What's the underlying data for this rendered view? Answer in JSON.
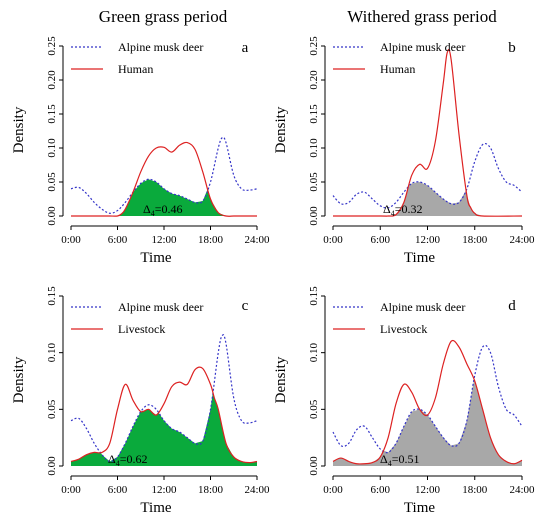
{
  "figure": {
    "col_titles": [
      "Green grass period",
      "Withered grass period"
    ]
  },
  "chart_data": [
    {
      "panel": "a",
      "type": "line",
      "ylabel": "Density",
      "xlabel": "Time",
      "x_ticks": [
        "0:00",
        "6:00",
        "12:00",
        "18:00",
        "24:00"
      ],
      "y_ticks": [
        "0.00",
        "0.05",
        "0.10",
        "0.15",
        "0.20",
        "0.25"
      ],
      "xlim": [
        0,
        24
      ],
      "ylim": [
        0,
        0.25
      ],
      "overlap_label": "0.46",
      "overlap_color": "#0aaa3c",
      "series": [
        {
          "name": "Alpine musk deer",
          "color": "#3434c8",
          "style": "dotted",
          "x": [
            0,
            1,
            2,
            3,
            4,
            5,
            6,
            7,
            8,
            9,
            10,
            11,
            12,
            13,
            14,
            15,
            16,
            17,
            18,
            19,
            19.5,
            20,
            21,
            22,
            23,
            24
          ],
          "y": [
            0.04,
            0.042,
            0.033,
            0.02,
            0.01,
            0.004,
            0.008,
            0.02,
            0.035,
            0.048,
            0.054,
            0.05,
            0.04,
            0.033,
            0.03,
            0.025,
            0.02,
            0.022,
            0.05,
            0.1,
            0.115,
            0.108,
            0.06,
            0.04,
            0.038,
            0.04
          ]
        },
        {
          "name": "Human",
          "color": "#dd2222",
          "style": "solid",
          "x": [
            0,
            1,
            2,
            3,
            4,
            5,
            6,
            6.5,
            7,
            8,
            9,
            10,
            11,
            12,
            13,
            14,
            15,
            16,
            17,
            18,
            19,
            20,
            21,
            22,
            23,
            24
          ],
          "y": [
            0,
            0,
            0,
            0,
            0,
            0,
            0,
            0.003,
            0.01,
            0.035,
            0.065,
            0.088,
            0.1,
            0.101,
            0.094,
            0.104,
            0.108,
            0.098,
            0.065,
            0.025,
            0.005,
            0,
            0,
            0,
            0,
            0
          ]
        }
      ]
    },
    {
      "panel": "b",
      "type": "line",
      "ylabel": "Density",
      "xlabel": "Time",
      "x_ticks": [
        "0:00",
        "6:00",
        "12:00",
        "18:00",
        "24:00"
      ],
      "y_ticks": [
        "0.00",
        "0.05",
        "0.10",
        "0.15",
        "0.20",
        "0.25"
      ],
      "xlim": [
        0,
        24
      ],
      "ylim": [
        0,
        0.25
      ],
      "overlap_label": "0.32",
      "overlap_color": "#a8a8a8",
      "series": [
        {
          "name": "Alpine musk deer",
          "color": "#3434c8",
          "style": "dotted",
          "x": [
            0,
            1,
            2,
            3,
            4,
            5,
            6,
            7,
            8,
            9,
            10,
            11,
            12,
            13,
            14,
            15,
            16,
            17,
            18,
            19,
            20,
            21,
            22,
            23,
            24
          ],
          "y": [
            0.03,
            0.018,
            0.02,
            0.032,
            0.035,
            0.025,
            0.015,
            0.012,
            0.02,
            0.035,
            0.048,
            0.05,
            0.045,
            0.035,
            0.025,
            0.018,
            0.02,
            0.04,
            0.08,
            0.105,
            0.1,
            0.07,
            0.05,
            0.045,
            0.035
          ]
        },
        {
          "name": "Human",
          "color": "#dd2222",
          "style": "solid",
          "x": [
            0,
            6,
            7,
            8,
            9,
            10,
            11,
            12,
            13,
            14,
            14.5,
            15,
            16,
            17,
            17.5,
            18,
            19,
            24
          ],
          "y": [
            0,
            0,
            0,
            0.002,
            0.02,
            0.06,
            0.076,
            0.07,
            0.11,
            0.195,
            0.24,
            0.23,
            0.12,
            0.03,
            0.012,
            0.004,
            0,
            0
          ]
        }
      ]
    },
    {
      "panel": "c",
      "type": "line",
      "ylabel": "Density",
      "xlabel": "Time",
      "x_ticks": [
        "0:00",
        "6:00",
        "12:00",
        "18:00",
        "24:00"
      ],
      "y_ticks": [
        "0.00",
        "0.05",
        "0.10",
        "0.15"
      ],
      "xlim": [
        0,
        24
      ],
      "ylim": [
        0,
        0.15
      ],
      "overlap_label": "0.62",
      "overlap_color": "#0aaa3c",
      "series": [
        {
          "name": "Alpine musk deer",
          "color": "#3434c8",
          "style": "dotted",
          "x": [
            0,
            1,
            2,
            3,
            4,
            5,
            6,
            7,
            8,
            9,
            10,
            11,
            12,
            13,
            14,
            15,
            16,
            17,
            18,
            19,
            19.5,
            20,
            21,
            22,
            23,
            24
          ],
          "y": [
            0.04,
            0.042,
            0.033,
            0.02,
            0.01,
            0.004,
            0.008,
            0.02,
            0.035,
            0.048,
            0.054,
            0.05,
            0.04,
            0.033,
            0.03,
            0.025,
            0.02,
            0.022,
            0.05,
            0.1,
            0.115,
            0.108,
            0.06,
            0.04,
            0.038,
            0.04
          ]
        },
        {
          "name": "Livestock",
          "color": "#dd2222",
          "style": "solid",
          "x": [
            0,
            1,
            2,
            3,
            4,
            5,
            6,
            7,
            8,
            9,
            10,
            11,
            12,
            13,
            14,
            15,
            16,
            17,
            18,
            18.5,
            19,
            20,
            21,
            22,
            23,
            24
          ],
          "y": [
            0.004,
            0.006,
            0.01,
            0.012,
            0.012,
            0.02,
            0.05,
            0.072,
            0.058,
            0.048,
            0.05,
            0.045,
            0.055,
            0.07,
            0.074,
            0.072,
            0.085,
            0.086,
            0.072,
            0.06,
            0.05,
            0.02,
            0.008,
            0.004,
            0.003,
            0.004
          ]
        }
      ]
    },
    {
      "panel": "d",
      "type": "line",
      "ylabel": "Density",
      "xlabel": "Time",
      "x_ticks": [
        "0:00",
        "6:00",
        "12:00",
        "18:00",
        "24:00"
      ],
      "y_ticks": [
        "0.00",
        "0.05",
        "0.10",
        "0.15"
      ],
      "xlim": [
        0,
        24
      ],
      "ylim": [
        0,
        0.15
      ],
      "overlap_label": "0.51",
      "overlap_color": "#a8a8a8",
      "series": [
        {
          "name": "Alpine musk deer",
          "color": "#3434c8",
          "style": "dotted",
          "x": [
            0,
            1,
            2,
            3,
            4,
            5,
            6,
            7,
            8,
            9,
            10,
            11,
            12,
            13,
            14,
            15,
            16,
            17,
            18,
            19,
            20,
            21,
            22,
            23,
            24
          ],
          "y": [
            0.03,
            0.018,
            0.02,
            0.032,
            0.035,
            0.025,
            0.015,
            0.012,
            0.02,
            0.035,
            0.048,
            0.05,
            0.045,
            0.035,
            0.025,
            0.018,
            0.02,
            0.04,
            0.08,
            0.105,
            0.1,
            0.07,
            0.05,
            0.045,
            0.035
          ]
        },
        {
          "name": "Livestock",
          "color": "#dd2222",
          "style": "solid",
          "x": [
            0,
            1,
            2,
            3,
            4,
            5,
            6,
            7,
            8,
            9,
            10,
            11,
            12,
            13,
            14,
            15,
            16,
            17,
            18,
            19,
            20,
            21,
            22,
            23,
            24
          ],
          "y": [
            0.004,
            0.007,
            0.004,
            0.002,
            0.002,
            0.003,
            0.008,
            0.025,
            0.055,
            0.072,
            0.065,
            0.05,
            0.045,
            0.06,
            0.09,
            0.11,
            0.105,
            0.09,
            0.075,
            0.05,
            0.025,
            0.01,
            0.004,
            0.002,
            0.005
          ]
        }
      ]
    }
  ]
}
